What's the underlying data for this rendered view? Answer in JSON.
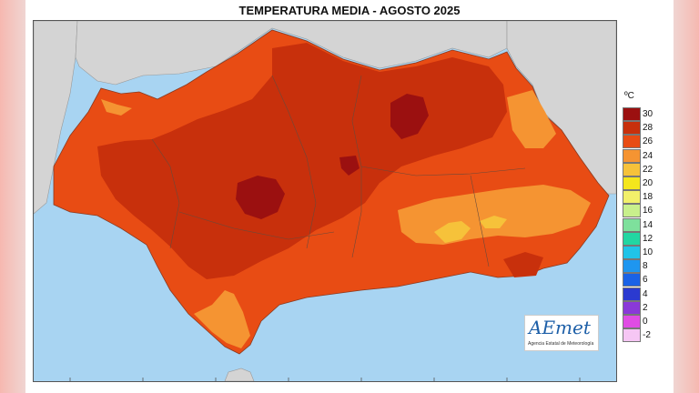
{
  "title": "TEMPERATURA MEDIA - AGOSTO 2025",
  "legend": {
    "unit": "ºC",
    "entries": [
      {
        "label": "30",
        "color": "#9b1010"
      },
      {
        "label": "28",
        "color": "#c8300c"
      },
      {
        "label": "26",
        "color": "#e84c14"
      },
      {
        "label": "24",
        "color": "#f59432"
      },
      {
        "label": "22",
        "color": "#f6c23a"
      },
      {
        "label": "20",
        "color": "#f4e61c"
      },
      {
        "label": "18",
        "color": "#f2f06a"
      },
      {
        "label": "16",
        "color": "#c8f08c"
      },
      {
        "label": "14",
        "color": "#7ee09c"
      },
      {
        "label": "12",
        "color": "#22d6a2"
      },
      {
        "label": "10",
        "color": "#20c4e8"
      },
      {
        "label": "8",
        "color": "#1e96f0"
      },
      {
        "label": "6",
        "color": "#1a62e6"
      },
      {
        "label": "4",
        "color": "#2b3ad0"
      },
      {
        "label": "2",
        "color": "#8a38d8"
      },
      {
        "label": "0",
        "color": "#e04ce4"
      },
      {
        "label": "-2",
        "color": "#f6c6f4"
      }
    ]
  },
  "logo": {
    "name": "AEmet",
    "subtitle": "Agencia Estatal de Meteorología"
  },
  "map": {
    "region": "Andalucía",
    "land_color": "#d4d4d4",
    "sea_color": "#a8d4f2"
  }
}
